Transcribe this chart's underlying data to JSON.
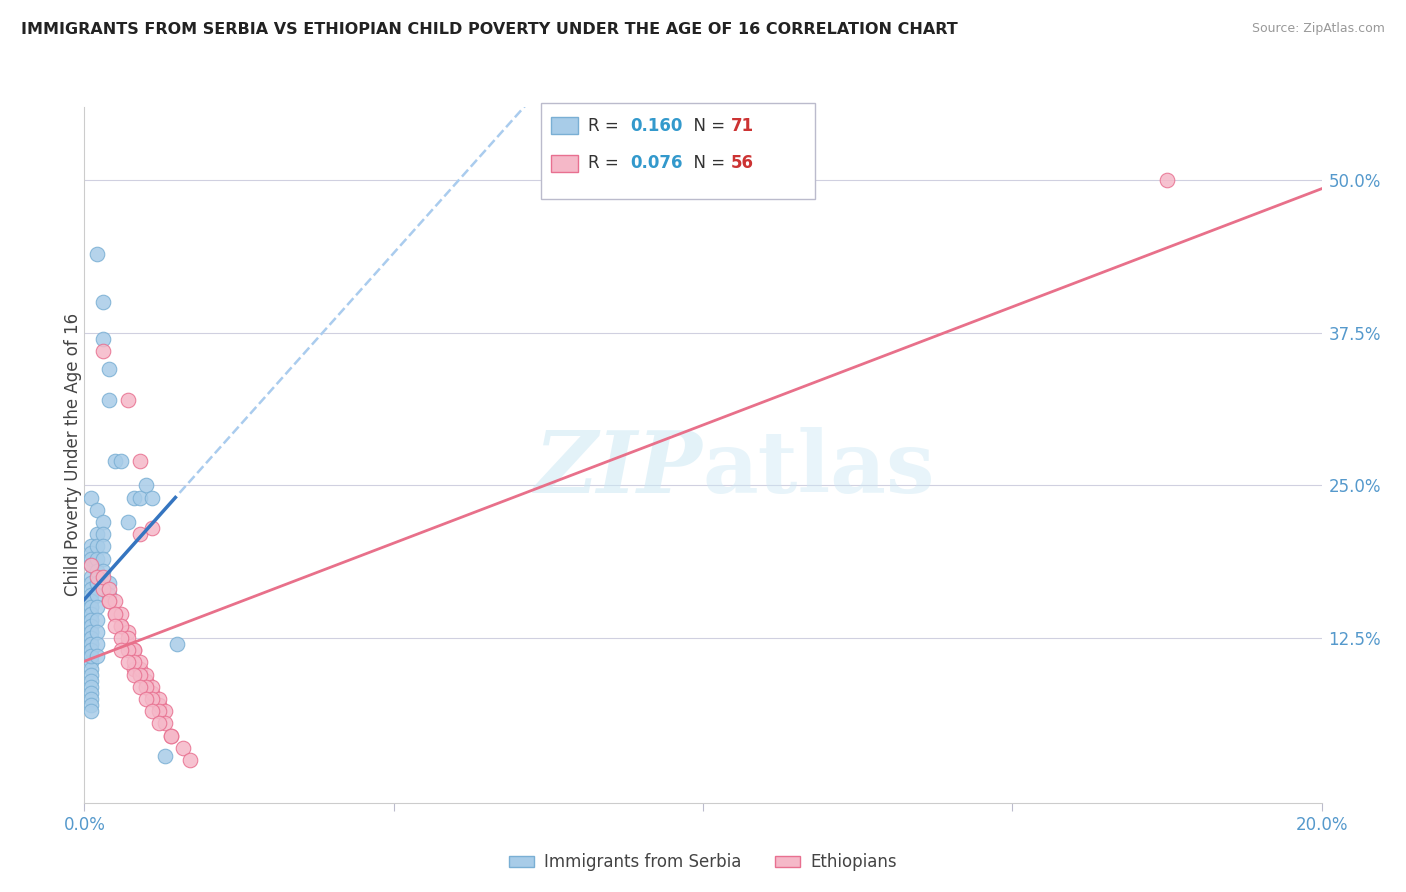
{
  "title": "IMMIGRANTS FROM SERBIA VS ETHIOPIAN CHILD POVERTY UNDER THE AGE OF 16 CORRELATION CHART",
  "source": "Source: ZipAtlas.com",
  "ylabel": "Child Poverty Under the Age of 16",
  "yticks": [
    "50.0%",
    "37.5%",
    "25.0%",
    "12.5%"
  ],
  "ytick_vals": [
    0.5,
    0.375,
    0.25,
    0.125
  ],
  "legend_labels": [
    "Immigrants from Serbia",
    "Ethiopians"
  ],
  "serbia_color": "#a8cce8",
  "ethiopia_color": "#f5b8c8",
  "serbia_edge_color": "#7aafd4",
  "ethiopia_edge_color": "#e87090",
  "serbia_line_color": "#3575c0",
  "ethiopia_line_color": "#e8708a",
  "watermark": "ZIPatlas",
  "serbia_R": 0.16,
  "ethiopia_R": 0.076,
  "serbia_N": 71,
  "ethiopia_N": 56,
  "xmin": 0.0,
  "xmax": 0.2,
  "ymin": -0.01,
  "ymax": 0.56,
  "serbia_x": [
    0.002,
    0.003,
    0.003,
    0.004,
    0.004,
    0.001,
    0.002,
    0.002,
    0.001,
    0.001,
    0.001,
    0.001,
    0.001,
    0.001,
    0.001,
    0.001,
    0.001,
    0.001,
    0.001,
    0.001,
    0.001,
    0.001,
    0.001,
    0.001,
    0.001,
    0.001,
    0.001,
    0.001,
    0.001,
    0.001,
    0.001,
    0.001,
    0.001,
    0.001,
    0.001,
    0.001,
    0.001,
    0.001,
    0.001,
    0.001,
    0.001,
    0.001,
    0.001,
    0.001,
    0.001,
    0.002,
    0.002,
    0.002,
    0.002,
    0.002,
    0.002,
    0.002,
    0.002,
    0.002,
    0.002,
    0.003,
    0.003,
    0.003,
    0.003,
    0.003,
    0.004,
    0.004,
    0.005,
    0.006,
    0.007,
    0.008,
    0.009,
    0.01,
    0.011,
    0.013,
    0.015
  ],
  "serbia_y": [
    0.44,
    0.4,
    0.37,
    0.345,
    0.32,
    0.24,
    0.23,
    0.21,
    0.2,
    0.195,
    0.19,
    0.185,
    0.175,
    0.17,
    0.165,
    0.16,
    0.155,
    0.15,
    0.145,
    0.14,
    0.135,
    0.13,
    0.125,
    0.12,
    0.115,
    0.11,
    0.105,
    0.1,
    0.095,
    0.09,
    0.085,
    0.08,
    0.075,
    0.07,
    0.065,
    0.155,
    0.15,
    0.145,
    0.14,
    0.135,
    0.13,
    0.125,
    0.12,
    0.115,
    0.11,
    0.2,
    0.19,
    0.18,
    0.17,
    0.16,
    0.15,
    0.14,
    0.13,
    0.12,
    0.11,
    0.22,
    0.21,
    0.2,
    0.19,
    0.18,
    0.17,
    0.16,
    0.27,
    0.27,
    0.22,
    0.24,
    0.24,
    0.25,
    0.24,
    0.028,
    0.12
  ],
  "ethiopia_x": [
    0.001,
    0.002,
    0.003,
    0.004,
    0.005,
    0.006,
    0.007,
    0.008,
    0.009,
    0.01,
    0.003,
    0.004,
    0.005,
    0.006,
    0.007,
    0.008,
    0.009,
    0.01,
    0.011,
    0.012,
    0.004,
    0.005,
    0.006,
    0.007,
    0.008,
    0.009,
    0.01,
    0.011,
    0.012,
    0.013,
    0.005,
    0.006,
    0.007,
    0.008,
    0.009,
    0.01,
    0.011,
    0.012,
    0.013,
    0.014,
    0.006,
    0.007,
    0.008,
    0.009,
    0.01,
    0.011,
    0.012,
    0.014,
    0.016,
    0.017,
    0.009,
    0.011,
    0.003,
    0.007,
    0.009,
    0.175
  ],
  "ethiopia_y": [
    0.185,
    0.175,
    0.165,
    0.155,
    0.145,
    0.135,
    0.12,
    0.1,
    0.095,
    0.085,
    0.175,
    0.165,
    0.155,
    0.145,
    0.13,
    0.115,
    0.1,
    0.09,
    0.08,
    0.07,
    0.155,
    0.145,
    0.135,
    0.125,
    0.115,
    0.105,
    0.095,
    0.085,
    0.075,
    0.065,
    0.135,
    0.125,
    0.115,
    0.105,
    0.095,
    0.085,
    0.075,
    0.065,
    0.055,
    0.045,
    0.115,
    0.105,
    0.095,
    0.085,
    0.075,
    0.065,
    0.055,
    0.045,
    0.035,
    0.025,
    0.21,
    0.215,
    0.36,
    0.32,
    0.27,
    0.5
  ]
}
